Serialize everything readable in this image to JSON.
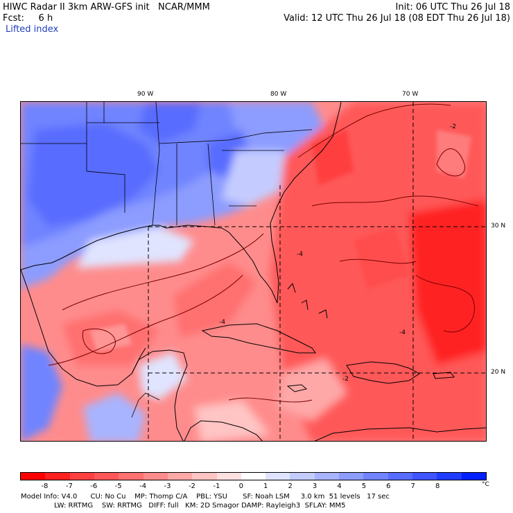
{
  "header": {
    "line1_left": "HIWC Radar II 3km ARW-GFS init   NCAR/MMM",
    "line1_right": "Init: 06 UTC Thu 26 Jul 18",
    "line2_left": "Fcst:     6 h",
    "line2_right": "Valid: 12 UTC Thu 26 Jul 18 (08 EDT Thu 26 Jul 18)",
    "line3_left": "Lifted index"
  },
  "map": {
    "lon_labels": [
      "90 W",
      "80 W",
      "70 W"
    ],
    "lat_labels": [
      "30 N",
      "20 N"
    ],
    "contour_labels": [
      "-4",
      "-4",
      "-2",
      "-2",
      "-4"
    ]
  },
  "colorbar": {
    "colors": [
      "#ff0000",
      "#ff2020",
      "#ff4040",
      "#ff5858",
      "#ff7070",
      "#ff8c8c",
      "#ffa8a8",
      "#ffc4c4",
      "#ffe0e0",
      "#ffffff",
      "#e0e4ff",
      "#c4ccff",
      "#a8b4ff",
      "#8c9cff",
      "#7084ff",
      "#586cff",
      "#4054ff",
      "#203cff",
      "#0020ff"
    ],
    "tick_labels": [
      "-8",
      "-7",
      "-6",
      "-5",
      "-4",
      "-3",
      "-2",
      "-1",
      "0",
      "1",
      "2",
      "3",
      "4",
      "5",
      "6",
      "7",
      "8"
    ],
    "unit": "°C"
  },
  "footer": {
    "line1": "Model Info: V4.0      CU: No Cu    MP: Thomp C/A    PBL: YSU       SF: Noah LSM     3.0 km  51 levels   17 sec",
    "line2": "LW: RRTMG    SW: RRTMG   DIFF: full   KM: 2D Smagor DAMP: Rayleigh3  SFLAY: MM5"
  },
  "colors": {
    "stable_blue": "#5a6cf0",
    "unstable_red": "#ff5858",
    "coastline": "#000000",
    "contour": "#7a0000"
  }
}
